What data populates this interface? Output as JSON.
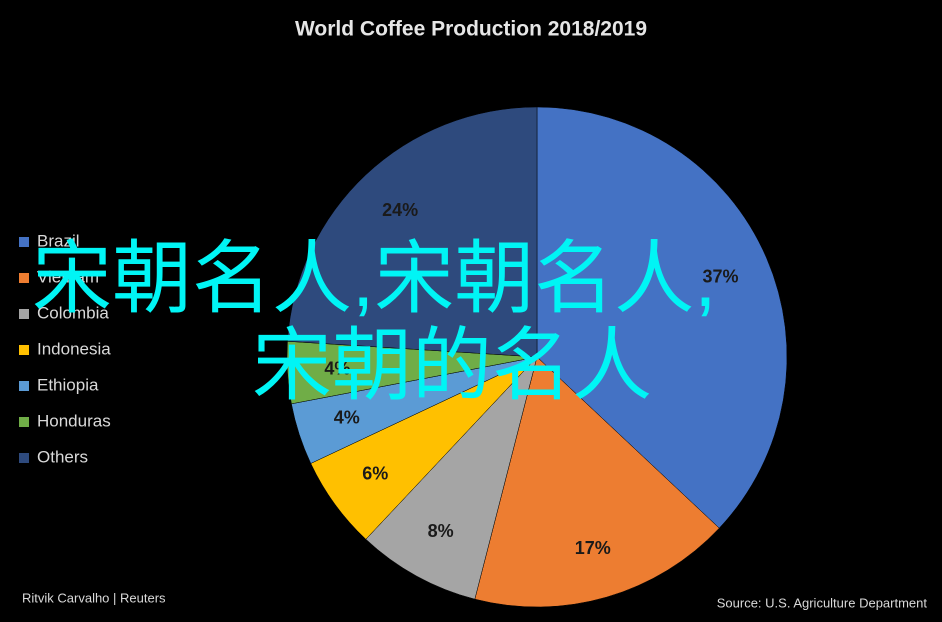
{
  "chart_data": {
    "type": "pie",
    "title": "World Coffee Production 2018/2019",
    "categories": [
      "Brazil",
      "Vietnam",
      "Colombia",
      "Indonesia",
      "Ethiopia",
      "Honduras",
      "Others"
    ],
    "values": [
      37,
      17,
      8,
      6,
      4,
      4,
      24
    ],
    "value_labels": [
      "37%",
      "17%",
      "8%",
      "6%",
      "4%",
      "4%",
      "24%"
    ],
    "colors": [
      "#4472c4",
      "#ed7d31",
      "#a5a5a5",
      "#ffc000",
      "#5b9bd5",
      "#70ad47",
      "#2e4a7d"
    ],
    "legend": "left",
    "credit": "Ritvik Carvalho | Reuters",
    "source": "Source: U.S. Agriculture Department",
    "overlay": [
      "宋朝名人,宋朝名人,",
      "宋朝的名人"
    ]
  }
}
